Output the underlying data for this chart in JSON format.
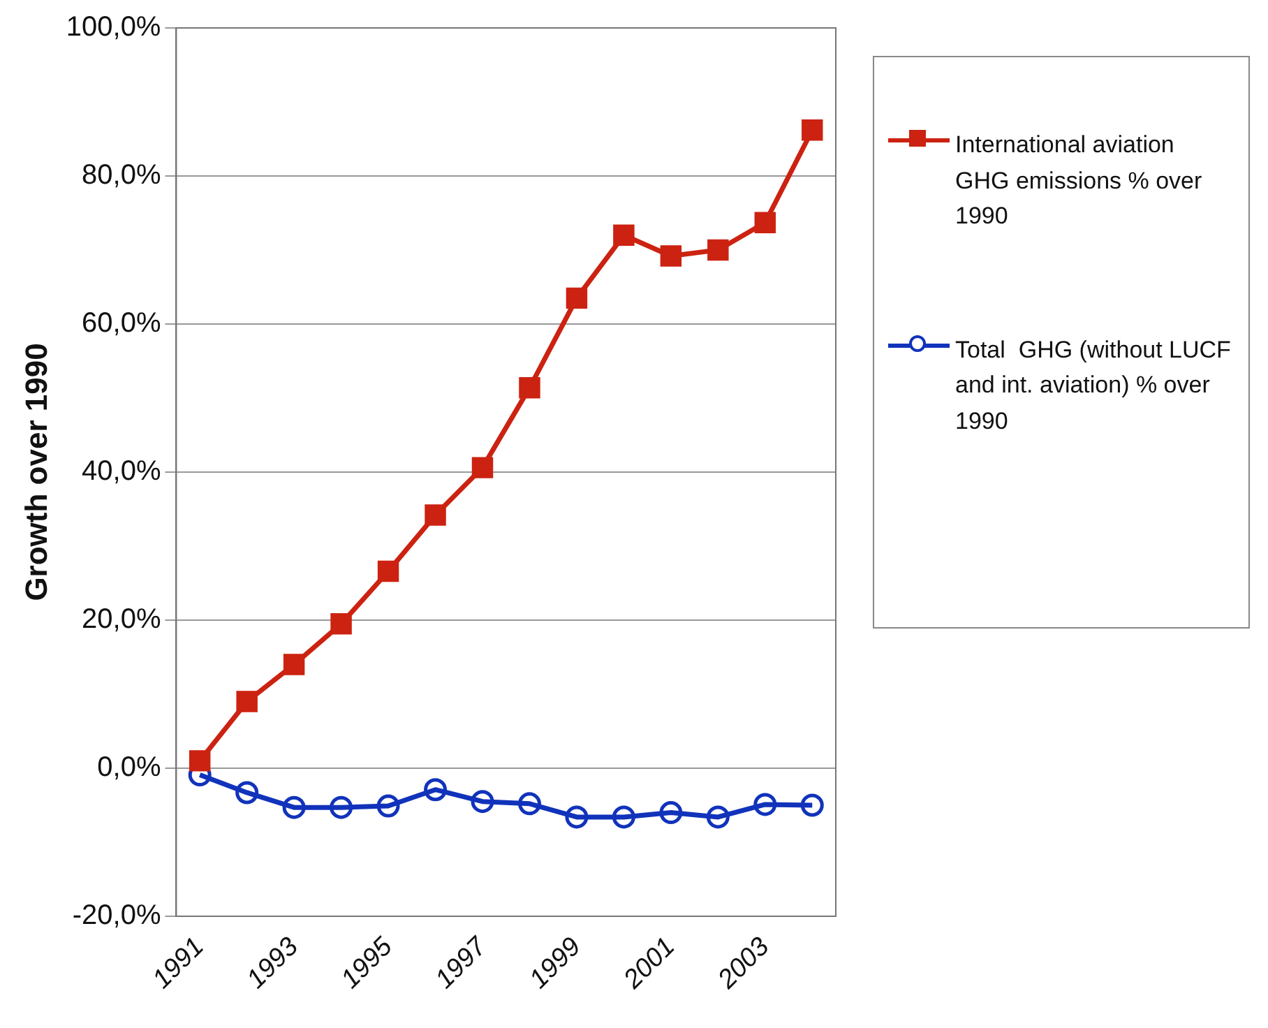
{
  "chart_data": {
    "type": "line",
    "ylabel": "Growth over 1990",
    "categories": [
      "1991",
      null,
      "1993",
      null,
      "1995",
      null,
      "1997",
      null,
      "1999",
      null,
      "2001",
      null,
      "2003",
      null
    ],
    "series": [
      {
        "name": "International aviation GHG emissions % over 1990",
        "color": "#cc2211",
        "marker": "square",
        "values": [
          1.0,
          9.0,
          14.0,
          19.5,
          26.6,
          34.2,
          40.6,
          51.4,
          63.5,
          72.0,
          69.2,
          70.0,
          73.7,
          86.2
        ]
      },
      {
        "name": "Total  GHG (without LUCF and int. aviation) % over 1990",
        "color": "#1133bb",
        "marker": "circle",
        "values": [
          -0.9,
          -3.3,
          -5.3,
          -5.3,
          -5.1,
          -2.9,
          -4.5,
          -4.8,
          -6.6,
          -6.6,
          -6.0,
          -6.6,
          -4.9,
          -5.0
        ]
      }
    ],
    "ylim": [
      -20,
      100
    ],
    "yticks": [
      {
        "value": -20,
        "label": "-20,0%"
      },
      {
        "value": 0,
        "label": "0,0%"
      },
      {
        "value": 20,
        "label": "20,0%"
      },
      {
        "value": 40,
        "label": "40,0%"
      },
      {
        "value": 60,
        "label": "60,0%"
      },
      {
        "value": 80,
        "label": "80,0%"
      },
      {
        "value": 100,
        "label": "100,0%"
      }
    ],
    "grid": "y",
    "legend": "right",
    "line_style": "solid"
  }
}
